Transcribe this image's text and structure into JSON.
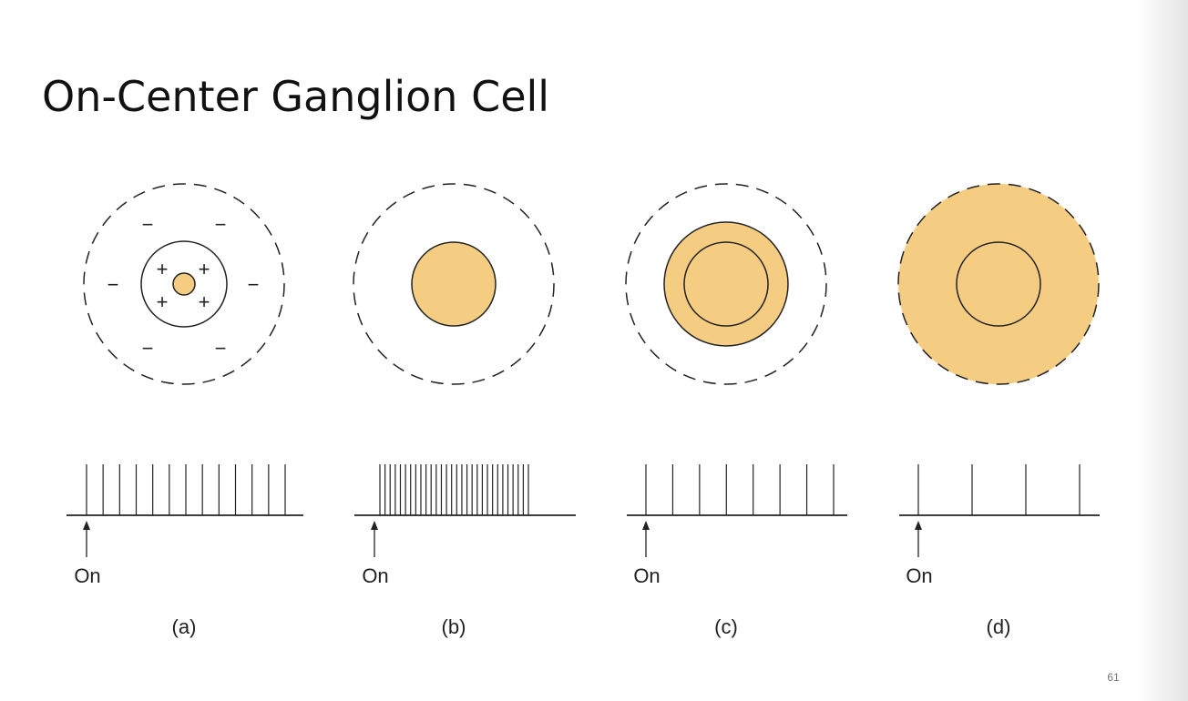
{
  "title": "On-Center Ganglion Cell",
  "panels": [
    {
      "caption": "(a)",
      "stimulus_label": "On",
      "center_signs": [
        "+",
        "+",
        "+",
        "+"
      ],
      "surround_signs": [
        "−",
        "−",
        "−",
        "−",
        "−",
        "−"
      ]
    },
    {
      "caption": "(b)",
      "stimulus_label": "On"
    },
    {
      "caption": "(c)",
      "stimulus_label": "On"
    },
    {
      "caption": "(d)",
      "stimulus_label": "On"
    }
  ],
  "page_number": "61"
}
